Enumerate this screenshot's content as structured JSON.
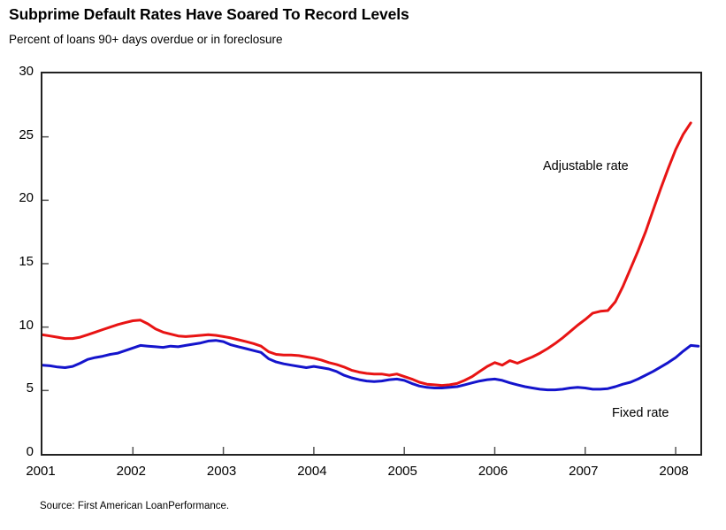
{
  "header": {
    "title": "Subprime Default Rates Have Soared To Record Levels",
    "subtitle": "Percent of loans 90+ days overdue or in foreclosure"
  },
  "source_note": "Source: First American LoanPerformance.",
  "colors": {
    "adjustable_line": "#e81414",
    "fixed_line": "#1414cc",
    "axis": "#222222",
    "tick": "#555555"
  },
  "chart_data": {
    "type": "line",
    "title": "Subprime Default Rates Have Soared To Record Levels",
    "subtitle": "Percent of loans 90+ days overdue or in foreclosure",
    "xlabel": "",
    "ylabel": "Percent of loans 90+ days overdue or in foreclosure",
    "x_frequency": "monthly",
    "x_start": "2001-01",
    "x_tick_labels": [
      "2001",
      "2002",
      "2003",
      "2004",
      "2005",
      "2006",
      "2007",
      "2008"
    ],
    "y_ticks": [
      0,
      5,
      10,
      15,
      20,
      25,
      30
    ],
    "ylim": [
      0,
      30
    ],
    "xlim_years": [
      2001,
      2008.28
    ],
    "grid": false,
    "legend_position": "inline-annotations",
    "series": [
      {
        "name": "Adjustable rate",
        "color": "#e81414",
        "values": [
          9.4,
          9.3,
          9.2,
          9.1,
          9.1,
          9.2,
          9.4,
          9.6,
          9.8,
          10.0,
          10.2,
          10.35,
          10.5,
          10.55,
          10.25,
          9.85,
          9.6,
          9.45,
          9.3,
          9.25,
          9.3,
          9.35,
          9.4,
          9.35,
          9.25,
          9.15,
          9.0,
          8.85,
          8.7,
          8.5,
          8.05,
          7.85,
          7.8,
          7.8,
          7.75,
          7.65,
          7.55,
          7.4,
          7.2,
          7.05,
          6.85,
          6.6,
          6.45,
          6.35,
          6.3,
          6.3,
          6.2,
          6.3,
          6.1,
          5.9,
          5.65,
          5.5,
          5.45,
          5.4,
          5.45,
          5.55,
          5.8,
          6.1,
          6.5,
          6.9,
          7.2,
          7.0,
          7.35,
          7.15,
          7.4,
          7.65,
          7.95,
          8.3,
          8.7,
          9.15,
          9.65,
          10.15,
          10.6,
          11.1,
          11.25,
          11.3,
          12.0,
          13.2,
          14.6,
          16.0,
          17.5,
          19.2,
          20.9,
          22.5,
          24.0,
          25.2,
          26.1
        ]
      },
      {
        "name": "Fixed rate",
        "color": "#1414cc",
        "values": [
          7.0,
          6.95,
          6.85,
          6.8,
          6.9,
          7.15,
          7.45,
          7.6,
          7.7,
          7.85,
          7.95,
          8.15,
          8.35,
          8.55,
          8.5,
          8.45,
          8.4,
          8.5,
          8.45,
          8.55,
          8.65,
          8.75,
          8.9,
          8.95,
          8.85,
          8.6,
          8.45,
          8.3,
          8.15,
          8.0,
          7.5,
          7.25,
          7.1,
          7.0,
          6.9,
          6.8,
          6.9,
          6.8,
          6.7,
          6.5,
          6.2,
          6.0,
          5.85,
          5.75,
          5.7,
          5.75,
          5.85,
          5.9,
          5.8,
          5.55,
          5.35,
          5.25,
          5.2,
          5.2,
          5.25,
          5.3,
          5.45,
          5.6,
          5.75,
          5.85,
          5.9,
          5.8,
          5.6,
          5.45,
          5.3,
          5.2,
          5.1,
          5.05,
          5.05,
          5.1,
          5.2,
          5.25,
          5.2,
          5.1,
          5.1,
          5.15,
          5.3,
          5.5,
          5.65,
          5.9,
          6.2,
          6.5,
          6.85,
          7.2,
          7.6,
          8.1,
          8.55,
          8.5
        ]
      }
    ]
  }
}
